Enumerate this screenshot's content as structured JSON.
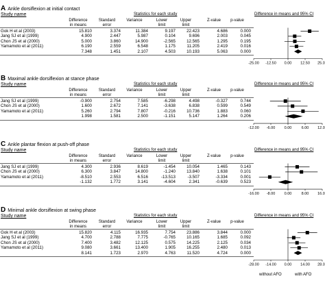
{
  "column_headers": {
    "study": "Study name",
    "stats_group": "Statistics for each study",
    "diff_group": "Difference in means and 95% CI",
    "cols": [
      "Difference\nin means",
      "Standard\nerror",
      "Variance",
      "Lower\nlimit",
      "Upper\nlimit",
      "Z-value",
      "p-value"
    ]
  },
  "footer": {
    "left": "without AFO",
    "right": "with AFO"
  },
  "panels": [
    {
      "label": "A",
      "title": "Ankle dorsiflexion at initial contact",
      "rows": [
        {
          "study": "Gok H et al (2003)",
          "diff": "15.810",
          "se": "3.374",
          "var": "11.384",
          "lower": "9.197",
          "upper": "22.423",
          "z": "4.686",
          "p": "0.000"
        },
        {
          "study": "Jang SJ et al (1999)",
          "diff": "4.900",
          "se": "2.447",
          "var": "5.987",
          "lower": "0.104",
          "upper": "9.696",
          "z": "2.003",
          "p": "0.045"
        },
        {
          "study": "Chon JS et al (2000)",
          "diff": "5.000",
          "se": "3.860",
          "var": "14.900",
          "lower": "-2.565",
          "upper": "12.565",
          "z": "1.295",
          "p": "0.195"
        },
        {
          "study": "Yamamoto et al (2011)",
          "diff": "6.190",
          "se": "2.559",
          "var": "6.548",
          "lower": "1.175",
          "upper": "11.205",
          "z": "2.419",
          "p": "0.016"
        },
        {
          "study": "",
          "diff": "7.348",
          "se": "1.451",
          "var": "2.107",
          "lower": "4.503",
          "upper": "10.193",
          "z": "5.063",
          "p": "0.000"
        }
      ],
      "axis_ticks": [
        "-25.00",
        "-12.50",
        "0.00",
        "12.50",
        "25.00"
      ]
    },
    {
      "label": "B",
      "title": "Maximal ankle dorsiflexion at stance phase",
      "rows": [
        {
          "study": "Jang SJ et al (1999)",
          "diff": "-0.900",
          "se": "2.754",
          "var": "7.585",
          "lower": "-6.298",
          "upper": "4.498",
          "z": "-0.327",
          "p": "0.744"
        },
        {
          "study": "Chon JS et al (2000)",
          "diff": "1.600",
          "se": "2.672",
          "var": "7.141",
          "lower": "-3.638",
          "upper": "6.838",
          "z": "0.599",
          "p": "0.549"
        },
        {
          "study": "Yamamoto et al (2011)",
          "diff": "5.260",
          "se": "2.794",
          "var": "7.807",
          "lower": "-0.216",
          "upper": "10.736",
          "z": "1.883",
          "p": "0.060"
        },
        {
          "study": "",
          "diff": "1.998",
          "se": "1.581",
          "var": "2.500",
          "lower": "-1.151",
          "upper": "5.147",
          "z": "1.264",
          "p": "0.206"
        }
      ],
      "axis_ticks": [
        "-12.00",
        "-6.00",
        "0.00",
        "6.00",
        "12.00"
      ]
    },
    {
      "label": "C",
      "title": "Ankle plantar flexion at push-off phase",
      "rows": [
        {
          "study": "Jang SJ et al (1999)",
          "diff": "4.300",
          "se": "2.936",
          "var": "8.619",
          "lower": "-1.454",
          "upper": "10.054",
          "z": "1.465",
          "p": "0.143"
        },
        {
          "study": "Chon JS et al (2000)",
          "diff": "6.300",
          "se": "3.847",
          "var": "14.800",
          "lower": "-1.240",
          "upper": "13.840",
          "z": "1.638",
          "p": "0.101"
        },
        {
          "study": "Yamamoto et al (2011)",
          "diff": "-8.510",
          "se": "2.553",
          "var": "6.516",
          "lower": "-13.513",
          "upper": "-3.507",
          "z": "-3.334",
          "p": "0.001"
        },
        {
          "study": "",
          "diff": "-1.132",
          "se": "1.772",
          "var": "3.141",
          "lower": "-4.604",
          "upper": "2.341",
          "z": "-0.639",
          "p": "0.523"
        }
      ],
      "axis_ticks": [
        "-16.00",
        "-8.00",
        "0.00",
        "8.00",
        "16.00"
      ]
    },
    {
      "label": "D",
      "title": "Minimal ankle dorsiflexion at swing phase",
      "rows": [
        {
          "study": "Gok H et al (2003)",
          "diff": "15.820",
          "se": "4.115",
          "var": "16.935",
          "lower": "7.754",
          "upper": "23.886",
          "z": "3.844",
          "p": "0.000"
        },
        {
          "study": "Jang SJ et al (1999)",
          "diff": "4.700",
          "se": "2.788",
          "var": "7.775",
          "lower": "-0.765",
          "upper": "10.165",
          "z": "1.685",
          "p": "0.092"
        },
        {
          "study": "Chon JS et al (2000)",
          "diff": "7.400",
          "se": "3.482",
          "var": "12.125",
          "lower": "0.575",
          "upper": "14.225",
          "z": "2.125",
          "p": "0.034"
        },
        {
          "study": "Yamamoto et al (2011)",
          "diff": "9.080",
          "se": "3.661",
          "var": "13.400",
          "lower": "1.905",
          "upper": "16.255",
          "z": "2.480",
          "p": "0.013"
        },
        {
          "study": "",
          "diff": "8.141",
          "se": "1.723",
          "var": "2.970",
          "lower": "4.763",
          "upper": "11.520",
          "z": "4.724",
          "p": "0.000"
        }
      ],
      "axis_ticks": [
        "-28.00",
        "-14.00",
        "0.00",
        "14.00",
        "28.00"
      ]
    }
  ],
  "chart_data": [
    {
      "type": "forest",
      "title": "Ankle dorsiflexion at initial contact",
      "xlim": [
        -25,
        25
      ],
      "studies": [
        "Gok H et al (2003)",
        "Jang SJ et al (1999)",
        "Chon JS et al (2000)",
        "Yamamoto et al (2011)"
      ],
      "estimate": [
        15.81,
        4.9,
        5.0,
        6.19
      ],
      "lower": [
        9.197,
        0.104,
        -2.565,
        1.175
      ],
      "upper": [
        22.423,
        9.696,
        12.565,
        11.205
      ],
      "pooled": {
        "estimate": 7.348,
        "lower": 4.503,
        "upper": 10.193
      }
    },
    {
      "type": "forest",
      "title": "Maximal ankle dorsiflexion at stance phase",
      "xlim": [
        -12,
        12
      ],
      "studies": [
        "Jang SJ et al (1999)",
        "Chon JS et al (2000)",
        "Yamamoto et al (2011)"
      ],
      "estimate": [
        -0.9,
        1.6,
        5.26
      ],
      "lower": [
        -6.298,
        -3.638,
        -0.216
      ],
      "upper": [
        4.498,
        6.838,
        10.736
      ],
      "pooled": {
        "estimate": 1.998,
        "lower": -1.151,
        "upper": 5.147
      }
    },
    {
      "type": "forest",
      "title": "Ankle plantar flexion at push-off phase",
      "xlim": [
        -16,
        16
      ],
      "studies": [
        "Jang SJ et al (1999)",
        "Chon JS et al (2000)",
        "Yamamoto et al (2011)"
      ],
      "estimate": [
        4.3,
        6.3,
        -8.51
      ],
      "lower": [
        -1.454,
        -1.24,
        -13.513
      ],
      "upper": [
        10.054,
        13.84,
        -3.507
      ],
      "pooled": {
        "estimate": -1.132,
        "lower": -4.604,
        "upper": 2.341
      }
    },
    {
      "type": "forest",
      "title": "Minimal ankle dorsiflexion at swing phase",
      "xlim": [
        -28,
        28
      ],
      "studies": [
        "Gok H et al (2003)",
        "Jang SJ et al (1999)",
        "Chon JS et al (2000)",
        "Yamamoto et al (2011)"
      ],
      "estimate": [
        15.82,
        4.7,
        7.4,
        9.08
      ],
      "lower": [
        7.754,
        -0.765,
        0.575,
        1.905
      ],
      "upper": [
        23.886,
        10.165,
        14.225,
        16.255
      ],
      "pooled": {
        "estimate": 8.141,
        "lower": 4.763,
        "upper": 11.52
      }
    }
  ]
}
